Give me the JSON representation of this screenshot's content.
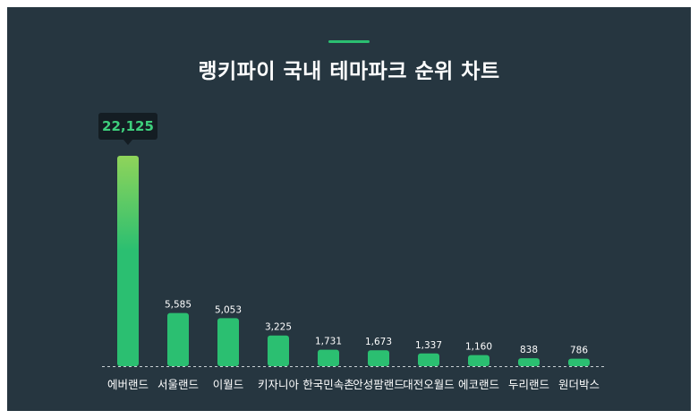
{
  "header": {
    "title": "랭키파이 국내 테마파크 순위 차트"
  },
  "colors": {
    "background": "#263640",
    "bar_top_highlight": "#8fd45a",
    "bar": "#2bbf71",
    "tooltip_bg": "#141d23",
    "tooltip_text": "#3ecf7c"
  },
  "chart_data": {
    "type": "bar",
    "title": "랭키파이 국내 테마파크 순위 차트",
    "xlabel": "",
    "ylabel": "",
    "grid": false,
    "categories": [
      "에버랜드",
      "서울랜드",
      "이월드",
      "키자니아",
      "한국민속촌",
      "안성팜랜드",
      "대전오월드",
      "에코랜드",
      "두리랜드",
      "원더박스"
    ],
    "values": [
      22125,
      5585,
      5053,
      3225,
      1731,
      1673,
      1337,
      1160,
      838,
      786
    ],
    "value_labels": [
      "22,125",
      "5,585",
      "5,053",
      "3,225",
      "1,731",
      "1,673",
      "1,337",
      "1,160",
      "838",
      "786"
    ],
    "highlighted_label": "22,125"
  }
}
